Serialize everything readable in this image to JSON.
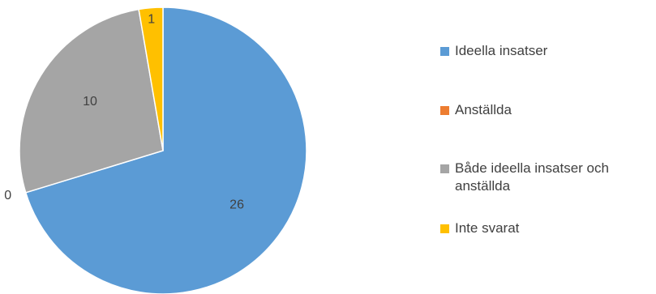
{
  "chart_data": {
    "type": "pie",
    "categories": [
      "Ideella insatser",
      "Anställda",
      "Både ideella insatser och anställda",
      "Inte svarat"
    ],
    "values": [
      26,
      0,
      10,
      1
    ],
    "colors": [
      "#5B9BD5",
      "#ED7D31",
      "#A5A5A5",
      "#FFC000"
    ],
    "data_labels": [
      "26",
      "0",
      "10",
      "1"
    ],
    "legend_position": "right"
  },
  "legend": {
    "items": [
      {
        "label": "Ideella insatser",
        "color": "#5B9BD5"
      },
      {
        "label": "Anställda",
        "color": "#ED7D31"
      },
      {
        "label": "Både ideella insatser och anställda",
        "color": "#A5A5A5"
      },
      {
        "label": "Inte svarat",
        "color": "#FFC000"
      }
    ]
  }
}
